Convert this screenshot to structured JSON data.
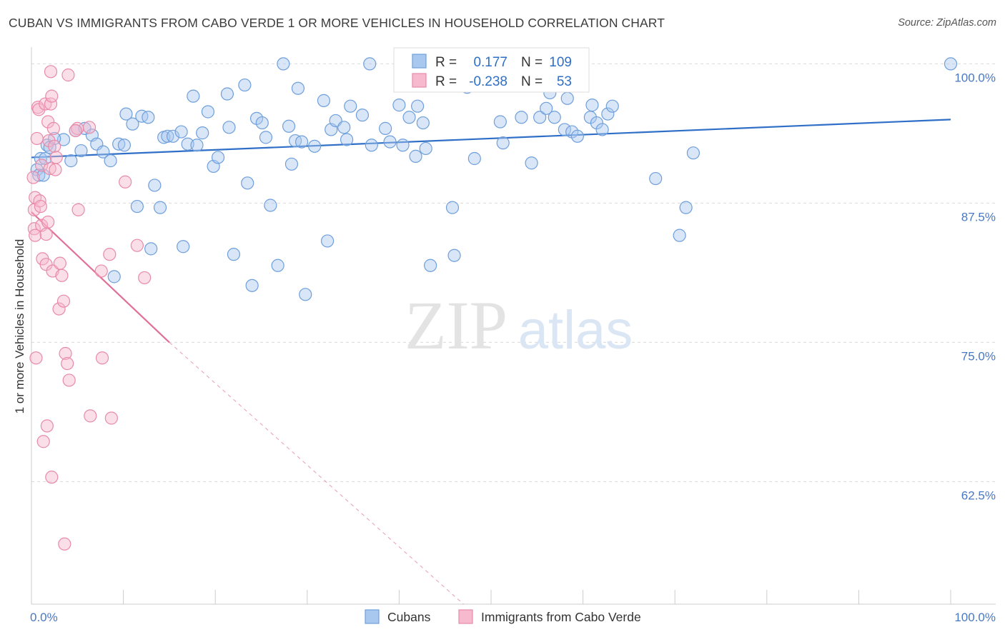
{
  "title": "CUBAN VS IMMIGRANTS FROM CABO VERDE 1 OR MORE VEHICLES IN HOUSEHOLD CORRELATION CHART",
  "source": "Source: ZipAtlas.com",
  "watermark": {
    "zip": "ZIP",
    "atlas": "atlas"
  },
  "colors": {
    "blue_fill": "#a9c8f0",
    "blue_stroke": "#6f9fdb",
    "blue_line": "#2f6fc7",
    "pink_fill": "#f6b9cd",
    "pink_stroke": "#e88aa9",
    "pink_line": "#e0709a",
    "accent_text": "#2f6fc7",
    "grid": "#d9d9d9"
  },
  "legend_top": {
    "rows": [
      {
        "r_label": "R =",
        "r_value": "0.177",
        "n_label": "N =",
        "n_value": "109"
      },
      {
        "r_label": "R =",
        "r_value": "-0.238",
        "n_label": "N =",
        "n_value": "53"
      }
    ]
  },
  "chart_data": {
    "type": "scatter",
    "title": "CUBAN VS IMMIGRANTS FROM CABO VERDE 1 OR MORE VEHICLES IN HOUSEHOLD CORRELATION CHART",
    "xlabel": "",
    "ylabel": "1 or more Vehicles in Household",
    "xlim": [
      0,
      100
    ],
    "ylim": [
      51.5,
      101.5
    ],
    "x_tick_labels": [
      "0.0%",
      "100.0%"
    ],
    "y_ticks": [
      62.5,
      75.0,
      87.5,
      100.0
    ],
    "y_tick_labels": [
      "62.5%",
      "75.0%",
      "87.5%",
      "100.0%"
    ],
    "grid": true,
    "legend_placement": "bottom-center",
    "series": [
      {
        "name": "Cubans",
        "color": "#a9c8f0",
        "trend": {
          "x": [
            0,
            100
          ],
          "y": [
            91.6,
            95.0
          ]
        },
        "points": [
          [
            0.6,
            90.5
          ],
          [
            0.8,
            90.0
          ],
          [
            1.0,
            91.5
          ],
          [
            1.3,
            90.0
          ],
          [
            1.7,
            92.7
          ],
          [
            2.0,
            92.5
          ],
          [
            3.5,
            93.2
          ],
          [
            4.3,
            91.3
          ],
          [
            4.8,
            94.0
          ],
          [
            5.4,
            92.2
          ],
          [
            5.8,
            94.2
          ],
          [
            6.6,
            93.6
          ],
          [
            7.1,
            92.8
          ],
          [
            7.8,
            92.1
          ],
          [
            8.6,
            91.3
          ],
          [
            9.5,
            92.8
          ],
          [
            10.1,
            92.7
          ],
          [
            10.3,
            95.5
          ],
          [
            11.0,
            94.6
          ],
          [
            11.5,
            87.2
          ],
          [
            12.0,
            95.3
          ],
          [
            12.7,
            95.2
          ],
          [
            13.0,
            83.4
          ],
          [
            13.4,
            89.1
          ],
          [
            14.0,
            87.1
          ],
          [
            14.4,
            93.4
          ],
          [
            14.8,
            93.5
          ],
          [
            15.4,
            93.5
          ],
          [
            16.3,
            93.9
          ],
          [
            16.5,
            83.6
          ],
          [
            17.0,
            92.8
          ],
          [
            17.6,
            97.1
          ],
          [
            18.0,
            92.7
          ],
          [
            18.6,
            93.8
          ],
          [
            19.2,
            95.7
          ],
          [
            19.8,
            90.8
          ],
          [
            20.3,
            91.6
          ],
          [
            21.3,
            97.3
          ],
          [
            21.5,
            94.3
          ],
          [
            22.0,
            82.9
          ],
          [
            23.2,
            98.1
          ],
          [
            23.5,
            89.3
          ],
          [
            24.0,
            80.1
          ],
          [
            24.5,
            95.1
          ],
          [
            25.1,
            94.7
          ],
          [
            25.5,
            93.4
          ],
          [
            26.0,
            87.3
          ],
          [
            26.8,
            81.9
          ],
          [
            27.4,
            100.0
          ],
          [
            28.0,
            94.4
          ],
          [
            28.3,
            91.0
          ],
          [
            28.7,
            93.1
          ],
          [
            29.4,
            93.0
          ],
          [
            29.8,
            79.3
          ],
          [
            30.8,
            92.6
          ],
          [
            31.8,
            96.7
          ],
          [
            32.2,
            84.1
          ],
          [
            32.6,
            94.1
          ],
          [
            33.1,
            94.9
          ],
          [
            34.0,
            94.3
          ],
          [
            34.7,
            96.2
          ],
          [
            34.3,
            93.2
          ],
          [
            36.0,
            95.4
          ],
          [
            36.8,
            100.0
          ],
          [
            37.0,
            92.7
          ],
          [
            38.5,
            94.2
          ],
          [
            39.0,
            93.0
          ],
          [
            40.4,
            92.7
          ],
          [
            41.1,
            95.2
          ],
          [
            41.8,
            91.7
          ],
          [
            42.0,
            96.2
          ],
          [
            42.6,
            94.7
          ],
          [
            42.9,
            92.4
          ],
          [
            43.4,
            81.9
          ],
          [
            45.8,
            87.1
          ],
          [
            46.0,
            82.8
          ],
          [
            47.4,
            97.9
          ],
          [
            48.2,
            91.5
          ],
          [
            49.0,
            99.2
          ],
          [
            51.0,
            94.8
          ],
          [
            51.3,
            92.9
          ],
          [
            53.3,
            95.2
          ],
          [
            54.4,
            91.1
          ],
          [
            55.3,
            95.2
          ],
          [
            56.0,
            96.0
          ],
          [
            56.4,
            97.4
          ],
          [
            56.9,
            95.2
          ],
          [
            58.0,
            94.1
          ],
          [
            58.3,
            96.9
          ],
          [
            58.8,
            93.9
          ],
          [
            59.4,
            93.5
          ],
          [
            60.8,
            95.2
          ],
          [
            61.0,
            96.3
          ],
          [
            61.5,
            94.7
          ],
          [
            62.1,
            94.1
          ],
          [
            62.7,
            95.5
          ],
          [
            63.2,
            96.2
          ],
          [
            67.9,
            89.7
          ],
          [
            70.5,
            84.6
          ],
          [
            71.2,
            87.1
          ],
          [
            72.0,
            92.0
          ],
          [
            100.0,
            100.0
          ],
          [
            1.5,
            91.5
          ],
          [
            2.5,
            93.3
          ],
          [
            9.0,
            80.9
          ],
          [
            40.0,
            96.3
          ],
          [
            29.0,
            97.8
          ]
        ]
      },
      {
        "name": "Immigrants from Cabo Verde",
        "color": "#f6b9cd",
        "trend": {
          "x": [
            0,
            15
          ],
          "y": [
            86.7,
            75.0
          ]
        },
        "trend_extension": {
          "x": [
            15,
            47
          ],
          "y": [
            75.0,
            51.5
          ]
        },
        "points": [
          [
            0.2,
            89.8
          ],
          [
            0.3,
            86.9
          ],
          [
            0.3,
            85.2
          ],
          [
            0.4,
            84.6
          ],
          [
            0.4,
            88.0
          ],
          [
            0.5,
            73.6
          ],
          [
            0.6,
            93.3
          ],
          [
            0.7,
            96.1
          ],
          [
            0.8,
            95.9
          ],
          [
            0.9,
            87.7
          ],
          [
            1.0,
            87.2
          ],
          [
            1.1,
            90.9
          ],
          [
            1.1,
            85.5
          ],
          [
            1.2,
            82.5
          ],
          [
            1.3,
            66.1
          ],
          [
            1.5,
            96.4
          ],
          [
            1.6,
            82.0
          ],
          [
            1.6,
            84.7
          ],
          [
            1.7,
            67.5
          ],
          [
            1.8,
            94.8
          ],
          [
            1.8,
            85.8
          ],
          [
            1.9,
            93.1
          ],
          [
            2.0,
            90.6
          ],
          [
            2.1,
            96.4
          ],
          [
            2.1,
            99.3
          ],
          [
            2.2,
            62.9
          ],
          [
            2.2,
            97.1
          ],
          [
            2.3,
            81.4
          ],
          [
            2.4,
            94.2
          ],
          [
            2.5,
            92.6
          ],
          [
            2.6,
            90.5
          ],
          [
            2.7,
            91.6
          ],
          [
            3.0,
            78.0
          ],
          [
            3.1,
            82.1
          ],
          [
            3.3,
            81.0
          ],
          [
            3.5,
            78.7
          ],
          [
            3.6,
            56.9
          ],
          [
            3.7,
            74.0
          ],
          [
            3.9,
            73.1
          ],
          [
            4.0,
            99.0
          ],
          [
            4.1,
            71.6
          ],
          [
            5.1,
            86.9
          ],
          [
            6.3,
            94.3
          ],
          [
            6.4,
            68.4
          ],
          [
            7.6,
            81.4
          ],
          [
            7.7,
            73.6
          ],
          [
            8.5,
            82.9
          ],
          [
            8.7,
            68.2
          ],
          [
            10.2,
            89.4
          ],
          [
            11.5,
            83.7
          ],
          [
            12.3,
            80.8
          ],
          [
            5.0,
            94.2
          ],
          [
            4.8,
            94.0
          ]
        ]
      }
    ]
  },
  "legend_bottom": [
    {
      "label": "Cubans",
      "swatch": "blue"
    },
    {
      "label": "Immigrants from Cabo Verde",
      "swatch": "pink"
    }
  ]
}
